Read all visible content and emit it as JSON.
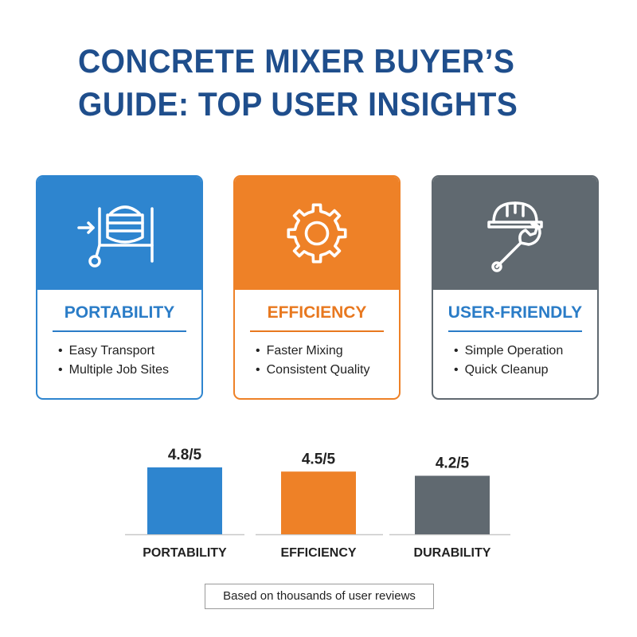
{
  "title": "CONCRETE MIXER BUYER’S GUIDE: TOP USER INSIGHTS",
  "cards": [
    {
      "heading": "PORTABILITY",
      "icon": "concrete-mixer-icon",
      "color": "#2e85cf",
      "heading_color": "#2a7cc7",
      "bullets": [
        "Easy Transport",
        "Multiple Job Sites"
      ]
    },
    {
      "heading": "EFFICIENCY",
      "icon": "gear-icon",
      "color": "#ee8127",
      "heading_color": "#e8781f",
      "bullets": [
        "Faster Mixing",
        "Consistent Quality"
      ]
    },
    {
      "heading": "USER-FRIENDLY",
      "icon": "hardhat-wrench-icon",
      "color": "#606970",
      "heading_color": "#2a7cc7",
      "bullets": [
        "Simple Operation",
        "Quick Cleanup"
      ]
    }
  ],
  "chart_data": {
    "type": "bar",
    "categories": [
      "PORTABILITY",
      "EFFICIENCY",
      "DURABILITY"
    ],
    "values": [
      4.8,
      4.5,
      4.2
    ],
    "value_labels": [
      "4.8/5",
      "4.5/5",
      "4.2/5"
    ],
    "colors": [
      "#2e85cf",
      "#ee8127",
      "#606970"
    ],
    "grid": false,
    "legend": "none"
  },
  "footnote": "Based on thousands of user reviews"
}
